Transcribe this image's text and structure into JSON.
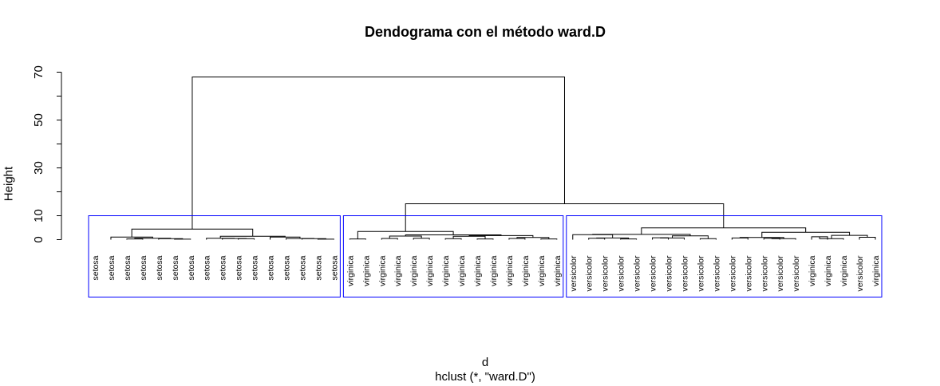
{
  "chart_data": {
    "type": "dendrogram",
    "title": "Dendograma con el método  ward.D",
    "xlabel": "d",
    "subtitle": "hclust (*, \"ward.D\")",
    "ylabel": "Height",
    "ylim": [
      0,
      70
    ],
    "yticks": [
      0,
      10,
      30,
      50,
      70
    ],
    "rect_color": "#0000ff",
    "leaves": [
      "setosa",
      "setosa",
      "setosa",
      "setosa",
      "setosa",
      "setosa",
      "setosa",
      "setosa",
      "setosa",
      "setosa",
      "setosa",
      "setosa",
      "setosa",
      "setosa",
      "setosa",
      "setosa",
      "virginica",
      "virginica",
      "virginica",
      "virginica",
      "virginica",
      "virginica",
      "virginica",
      "virginica",
      "virginica",
      "virginica",
      "virginica",
      "virginica",
      "virginica",
      "virginica",
      "versicolor",
      "versicolor",
      "versicolor",
      "versicolor",
      "versicolor",
      "versicolor",
      "versicolor",
      "versicolor",
      "versicolor",
      "versicolor",
      "versicolor",
      "versicolor",
      "versicolor",
      "versicolor",
      "versicolor",
      "virginica",
      "virginica",
      "virginica",
      "versicolor",
      "virginica"
    ],
    "merges": [
      {
        "a": 2,
        "b": 3,
        "h": 0.3
      },
      {
        "a": 5,
        "b": 6,
        "h": 0.2
      },
      {
        "a": 4,
        "b": "m2",
        "h": 0.4
      },
      {
        "a": "m3",
        "b": "m1",
        "h": 0.6
      },
      {
        "a": 1,
        "b": "m4",
        "h": 1.1
      },
      {
        "a": 9,
        "b": 10,
        "h": 0.4
      },
      {
        "a": 8,
        "b": "m6",
        "h": 0.5
      },
      {
        "a": 7,
        "b": "m7",
        "h": 0.6
      },
      {
        "a": 14,
        "b": 15,
        "h": 0.2
      },
      {
        "a": 13,
        "b": "m9",
        "h": 0.4
      },
      {
        "a": 12,
        "b": "m10",
        "h": 0.5
      },
      {
        "a": 11,
        "b": "m11",
        "h": 1.1
      },
      {
        "a": "m8",
        "b": "m12",
        "h": 1.4
      },
      {
        "a": "m5",
        "b": "m13",
        "h": 4.4
      },
      {
        "a": 16,
        "b": 17,
        "h": 0.3
      },
      {
        "a": 18,
        "b": 19,
        "h": 0.5
      },
      {
        "a": 20,
        "b": 21,
        "h": 0.6
      },
      {
        "a": "m16",
        "b": "m17",
        "h": 1.5
      },
      {
        "a": 22,
        "b": 23,
        "h": 0.4
      },
      {
        "a": 24,
        "b": 25,
        "h": 0.3
      },
      {
        "a": "m19",
        "b": "m20",
        "h": 1.4
      },
      {
        "a": 26,
        "b": 27,
        "h": 0.5
      },
      {
        "a": 28,
        "b": 29,
        "h": 0.3
      },
      {
        "a": "m22",
        "b": "m23",
        "h": 0.9
      },
      {
        "a": "m21",
        "b": "m24",
        "h": 1.7
      },
      {
        "a": "m18",
        "b": "m25",
        "h": 2.0
      },
      {
        "a": "m15",
        "b": "m26",
        "h": 3.4
      },
      {
        "a": 31,
        "b": 32,
        "h": 0.6
      },
      {
        "a": 33,
        "b": 34,
        "h": 0.3
      },
      {
        "a": "m28",
        "b": "m29",
        "h": 0.7
      },
      {
        "a": 30,
        "b": "m30",
        "h": 2.1
      },
      {
        "a": 35,
        "b": 36,
        "h": 0.8
      },
      {
        "a": 37,
        "b": "m32",
        "h": 0.7
      },
      {
        "a": 38,
        "b": 39,
        "h": 0.4
      },
      {
        "a": "m33",
        "b": "m34",
        "h": 1.6
      },
      {
        "a": "m31",
        "b": "m35",
        "h": 2.2
      },
      {
        "a": 40,
        "b": 41,
        "h": 0.7
      },
      {
        "a": 42,
        "b": 43,
        "h": 0.6
      },
      {
        "a": 44,
        "b": "m38",
        "h": 0.4
      },
      {
        "a": "m37",
        "b": "m39",
        "h": 0.9
      },
      {
        "a": 45,
        "b": 46,
        "h": 1.2
      },
      {
        "a": 47,
        "b": "m41",
        "h": 0.4
      },
      {
        "a": 48,
        "b": 49,
        "h": 1.0
      },
      {
        "a": "m42",
        "b": "m43",
        "h": 1.8
      },
      {
        "a": "m40",
        "b": "m44",
        "h": 3.1
      },
      {
        "a": "m36",
        "b": "m45",
        "h": 4.9
      },
      {
        "a": "m27",
        "b": "m46",
        "h": 15.0
      },
      {
        "a": "m14",
        "b": "m47",
        "h": 68.0
      }
    ],
    "clusters": [
      {
        "from": 0,
        "to": 15
      },
      {
        "from": 16,
        "to": 29
      },
      {
        "from": 30,
        "to": 49
      }
    ],
    "cut_height": 10
  }
}
